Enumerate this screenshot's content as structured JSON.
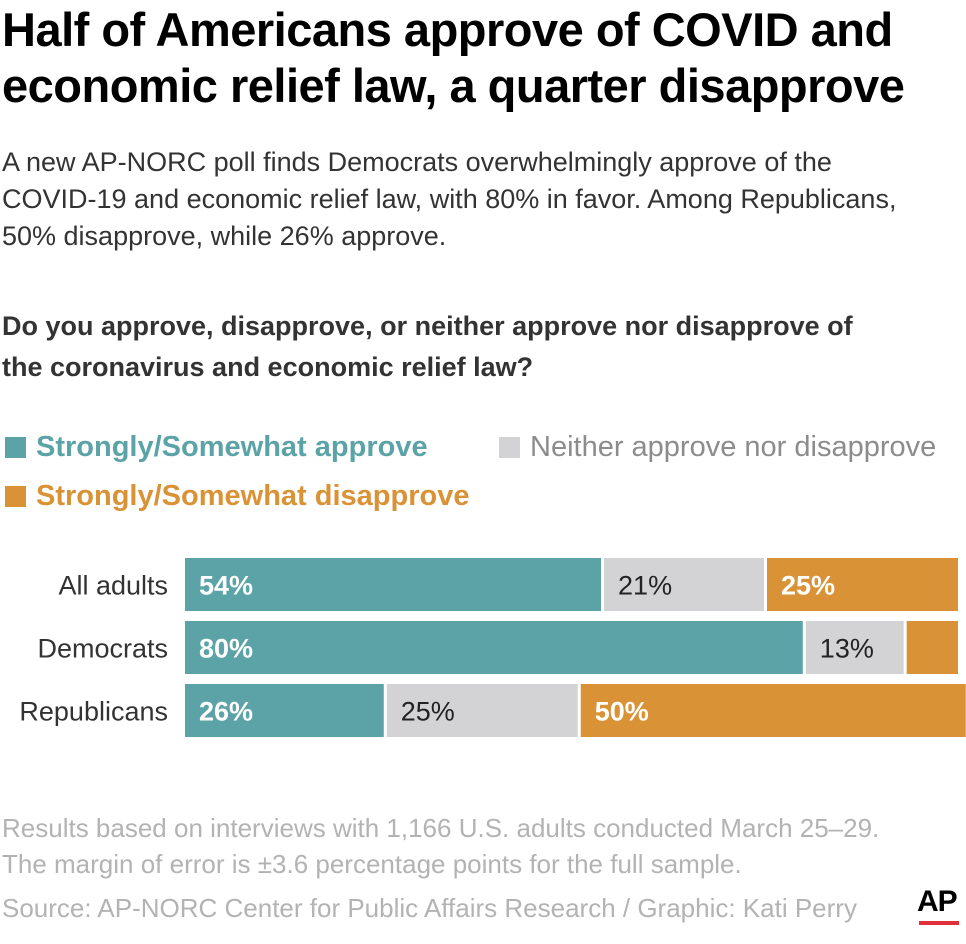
{
  "title_lines": [
    "Half of Americans approve of  COVID and",
    "economic relief law, a quarter disapprove"
  ],
  "subtitle_lines": [
    "A new AP-NORC poll finds Democrats overwhelmingly approve of the",
    "COVID-19 and economic relief law, with 80% in favor. Among Republicans,",
    "50% disapprove, while 26% approve."
  ],
  "question_lines": [
    "Do you approve, disapprove, or neither approve nor disapprove of",
    "the coronavirus and economic relief law?"
  ],
  "legend": {
    "approve": "Strongly/Somewhat approve",
    "neither": "Neither approve nor disapprove",
    "disapprove": "Strongly/Somewhat disapprove"
  },
  "colors": {
    "approve": "#5ba3a6",
    "neither": "#d3d3d5",
    "disapprove": "#da9236"
  },
  "chart_data": {
    "type": "bar",
    "orientation": "horizontal",
    "stacked": true,
    "categories": [
      "All adults",
      "Democrats",
      "Republicans"
    ],
    "series": [
      {
        "name": "Strongly/Somewhat approve",
        "values": [
          54,
          80,
          26
        ],
        "labels": [
          "54%",
          "80%",
          "26%"
        ]
      },
      {
        "name": "Neither approve nor disapprove",
        "values": [
          21,
          13,
          25
        ],
        "labels": [
          "21%",
          "13%",
          "25%"
        ]
      },
      {
        "name": "Strongly/Somewhat disapprove",
        "values": [
          25,
          7,
          50
        ],
        "labels": [
          "25%",
          "",
          "50%"
        ]
      }
    ],
    "title": "Do you approve, disapprove, or neither approve nor disapprove of the coronavirus and economic relief law?",
    "xlim": [
      0,
      100
    ],
    "grid": false,
    "legend_position": "top"
  },
  "notes_lines": [
    "Results based on interviews with 1,166 U.S. adults conducted March 25–29.",
    "The margin of error is ±3.6 percentage points for the full sample."
  ],
  "source": "Source: AP-NORC Center for Public Affairs Research / Graphic: Kati Perry",
  "logo_text": "AP"
}
